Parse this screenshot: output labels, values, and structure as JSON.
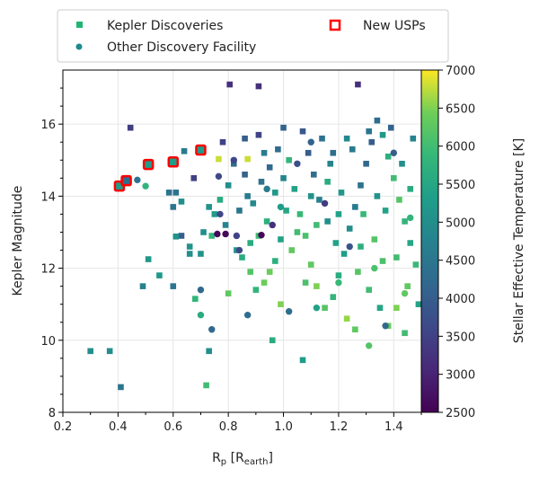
{
  "chart_data": {
    "type": "scatter",
    "xlabel": {
      "main": "R",
      "sub": "p",
      "bracket_open": " [R",
      "bracket_sub": "earth",
      "bracket_close": "]"
    },
    "ylabel": "Kepler Magnitude",
    "xlim": [
      0.2,
      1.5
    ],
    "ylim": [
      8,
      17.5
    ],
    "xticks": [
      "0.2",
      "0.4",
      "0.6",
      "0.8",
      "1.0",
      "1.2",
      "1.4"
    ],
    "yticks": [
      "8",
      "10",
      "12",
      "14",
      "16"
    ],
    "grid": true,
    "legend": {
      "placement": "top",
      "entries": [
        "Kepler Discoveries",
        "Other Discovery Facility",
        "New USPs"
      ]
    },
    "colorbar": {
      "label": "Stellar Effective Temperature [K]",
      "range": [
        2500,
        7000
      ],
      "ticks": [
        "2500",
        "3000",
        "3500",
        "4000",
        "4500",
        "5000",
        "5500",
        "6000",
        "6500",
        "7000"
      ],
      "colormap": "viridis"
    },
    "series": [
      {
        "name": "Kepler Discoveries",
        "marker": "square",
        "points": [
          [
            0.3,
            9.7,
            5000
          ],
          [
            0.37,
            9.7,
            5000
          ],
          [
            0.41,
            8.7,
            4500
          ],
          [
            0.73,
            9.7,
            5000
          ],
          [
            0.72,
            8.75,
            6000
          ],
          [
            0.96,
            10.0,
            5600
          ],
          [
            1.07,
            9.45,
            5300
          ],
          [
            0.68,
            11.15,
            5800
          ],
          [
            0.49,
            11.5,
            4700
          ],
          [
            0.6,
            11.5,
            4500
          ],
          [
            0.55,
            11.8,
            5200
          ],
          [
            0.51,
            12.25,
            5200
          ],
          [
            0.805,
            17.1,
            3200
          ],
          [
            0.91,
            17.05,
            3200
          ],
          [
            1.27,
            17.1,
            3200
          ],
          [
            0.445,
            15.9,
            3400
          ],
          [
            0.78,
            15.5,
            3500
          ],
          [
            0.86,
            15.6,
            4000
          ],
          [
            0.91,
            15.7,
            3500
          ],
          [
            0.64,
            15.25,
            4600
          ],
          [
            0.675,
            14.5,
            3500
          ],
          [
            0.765,
            15.03,
            6800
          ],
          [
            0.87,
            15.03,
            6800
          ],
          [
            0.585,
            14.1,
            4400
          ],
          [
            0.61,
            14.1,
            4400
          ],
          [
            0.6,
            13.7,
            4500
          ],
          [
            0.63,
            13.85,
            5000
          ],
          [
            0.63,
            12.9,
            4000
          ],
          [
            0.61,
            12.88,
            5100
          ],
          [
            0.66,
            12.6,
            5100
          ],
          [
            0.7,
            12.4,
            5100
          ],
          [
            0.66,
            12.4,
            5000
          ],
          [
            0.73,
            13.7,
            5100
          ],
          [
            0.75,
            13.5,
            5300
          ],
          [
            0.71,
            13.0,
            5000
          ],
          [
            0.79,
            13.2,
            4800
          ],
          [
            0.83,
            12.5,
            5200
          ],
          [
            0.85,
            12.3,
            5600
          ],
          [
            0.88,
            11.9,
            6200
          ],
          [
            0.8,
            11.3,
            6300
          ],
          [
            0.9,
            11.4,
            5800
          ],
          [
            0.93,
            11.6,
            6400
          ],
          [
            0.97,
            12.2,
            5700
          ],
          [
            0.99,
            12.8,
            5400
          ],
          [
            0.84,
            13.6,
            4500
          ],
          [
            0.87,
            14.0,
            4600
          ],
          [
            0.92,
            14.4,
            4400
          ],
          [
            0.95,
            14.8,
            4200
          ],
          [
            0.98,
            15.3,
            4300
          ],
          [
            1.0,
            15.9,
            4100
          ],
          [
            1.02,
            15.0,
            5800
          ],
          [
            1.04,
            14.2,
            5400
          ],
          [
            1.06,
            13.5,
            5900
          ],
          [
            1.08,
            12.9,
            6100
          ],
          [
            1.1,
            12.1,
            6300
          ],
          [
            1.12,
            11.5,
            6500
          ],
          [
            1.15,
            10.9,
            6200
          ],
          [
            1.18,
            11.2,
            5800
          ],
          [
            1.2,
            11.8,
            5600
          ],
          [
            1.22,
            12.4,
            5300
          ],
          [
            1.24,
            13.1,
            5000
          ],
          [
            1.26,
            13.7,
            4600
          ],
          [
            1.28,
            14.3,
            4400
          ],
          [
            1.3,
            14.9,
            4200
          ],
          [
            1.32,
            15.5,
            4000
          ],
          [
            1.34,
            16.1,
            4300
          ],
          [
            1.36,
            15.7,
            5200
          ],
          [
            1.38,
            15.1,
            5700
          ],
          [
            1.4,
            14.5,
            6000
          ],
          [
            1.42,
            13.9,
            6200
          ],
          [
            1.44,
            13.3,
            5800
          ],
          [
            1.46,
            12.7,
            5500
          ],
          [
            1.48,
            12.1,
            5900
          ],
          [
            1.45,
            11.5,
            6300
          ],
          [
            1.41,
            10.9,
            6500
          ],
          [
            1.38,
            10.4,
            6400
          ],
          [
            1.35,
            10.9,
            5500
          ],
          [
            1.31,
            11.4,
            6000
          ],
          [
            1.27,
            11.9,
            6200
          ],
          [
            1.23,
            10.6,
            6600
          ],
          [
            1.19,
            12.7,
            5400
          ],
          [
            1.16,
            13.3,
            5000
          ],
          [
            1.13,
            13.9,
            4700
          ],
          [
            1.11,
            14.6,
            4300
          ],
          [
            1.09,
            15.2,
            4000
          ],
          [
            1.07,
            15.8,
            3900
          ],
          [
            1.05,
            13.0,
            6000
          ],
          [
            1.01,
            13.6,
            5500
          ],
          [
            0.97,
            14.1,
            5200
          ],
          [
            0.94,
            13.3,
            5700
          ],
          [
            0.91,
            12.9,
            6000
          ],
          [
            0.89,
            13.8,
            4900
          ],
          [
            0.86,
            14.6,
            4100
          ],
          [
            0.82,
            14.9,
            4300
          ],
          [
            0.8,
            14.3,
            5000
          ],
          [
            0.77,
            13.9,
            5600
          ],
          [
            0.74,
            12.9,
            5800
          ],
          [
            1.14,
            15.6,
            4400
          ],
          [
            1.17,
            14.9,
            4800
          ],
          [
            1.21,
            14.1,
            5200
          ],
          [
            1.25,
            15.3,
            4600
          ],
          [
            1.29,
            13.5,
            5900
          ],
          [
            1.33,
            12.8,
            6200
          ],
          [
            1.37,
            13.6,
            5400
          ],
          [
            1.43,
            14.9,
            5000
          ],
          [
            1.47,
            15.6,
            4800
          ],
          [
            1.39,
            15.9,
            4100
          ],
          [
            1.31,
            15.8,
            4500
          ],
          [
            1.23,
            15.6,
            4900
          ],
          [
            1.16,
            14.4,
            5600
          ],
          [
            1.12,
            13.2,
            6000
          ],
          [
            1.03,
            12.5,
            6300
          ],
          [
            0.95,
            11.9,
            6400
          ],
          [
            0.99,
            11.0,
            6500
          ],
          [
            1.26,
            10.3,
            6300
          ],
          [
            1.44,
            10.2,
            6000
          ],
          [
            1.49,
            11.0,
            5400
          ],
          [
            1.36,
            12.2,
            6100
          ],
          [
            1.28,
            12.6,
            5700
          ],
          [
            1.2,
            13.5,
            5400
          ],
          [
            1.1,
            14.0,
            5100
          ],
          [
            1.0,
            14.5,
            4800
          ],
          [
            0.93,
            15.2,
            4600
          ],
          [
            1.46,
            14.2,
            5600
          ],
          [
            1.41,
            12.3,
            6000
          ],
          [
            1.34,
            14.0,
            5100
          ],
          [
            1.18,
            15.2,
            4300
          ],
          [
            1.08,
            11.6,
            6100
          ],
          [
            0.88,
            12.7,
            5600
          ]
        ]
      },
      {
        "name": "Other Discovery Facility",
        "marker": "circle",
        "points": [
          [
            0.74,
            10.3,
            4200
          ],
          [
            0.7,
            10.7,
            5600
          ],
          [
            0.87,
            10.7,
            4300
          ],
          [
            0.7,
            11.4,
            4200
          ],
          [
            0.47,
            14.45,
            4400
          ],
          [
            0.5,
            14.28,
            5800
          ],
          [
            0.765,
            14.55,
            3600
          ],
          [
            0.76,
            12.95,
            2600
          ],
          [
            0.79,
            12.95,
            2600
          ],
          [
            0.92,
            12.92,
            2600
          ],
          [
            0.83,
            12.9,
            3500
          ],
          [
            0.84,
            12.5,
            3600
          ],
          [
            0.77,
            13.5,
            3600
          ],
          [
            0.96,
            13.2,
            3200
          ],
          [
            1.02,
            10.8,
            4300
          ],
          [
            1.12,
            10.9,
            5400
          ],
          [
            1.31,
            9.85,
            6200
          ],
          [
            1.37,
            10.4,
            4200
          ],
          [
            1.24,
            12.6,
            3800
          ],
          [
            1.15,
            13.8,
            3400
          ],
          [
            1.05,
            14.9,
            3700
          ],
          [
            1.4,
            15.2,
            4000
          ],
          [
            1.46,
            13.4,
            5800
          ],
          [
            1.1,
            15.5,
            4100
          ],
          [
            0.94,
            14.2,
            4600
          ],
          [
            1.2,
            11.6,
            5900
          ],
          [
            1.33,
            12.0,
            6100
          ],
          [
            1.44,
            11.3,
            6300
          ],
          [
            0.82,
            15.0,
            3600
          ],
          [
            0.99,
            13.7,
            5300
          ]
        ]
      },
      {
        "name": "New USPs",
        "marker": "square-outline",
        "edge_color": "#ff0000",
        "points": [
          [
            0.405,
            14.28,
            5300
          ],
          [
            0.43,
            14.43,
            4300
          ],
          [
            0.51,
            14.88,
            5300
          ],
          [
            0.6,
            14.95,
            5300
          ],
          [
            0.7,
            15.28,
            5300
          ]
        ]
      }
    ]
  }
}
